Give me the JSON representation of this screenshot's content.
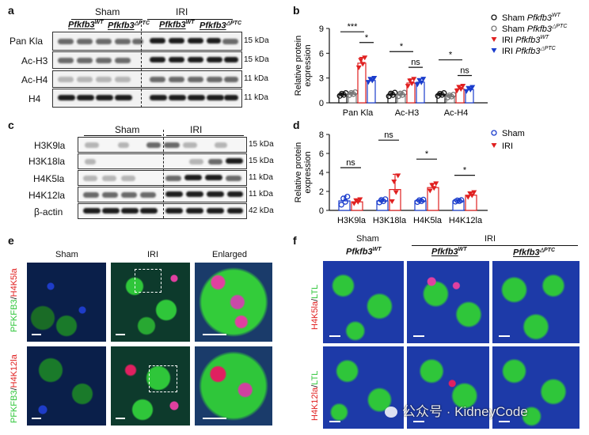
{
  "panels": {
    "a": "a",
    "b": "b",
    "c": "c",
    "d": "d",
    "e": "e",
    "f": "f"
  },
  "blot_a": {
    "groups": [
      "Sham",
      "IRI"
    ],
    "genotypes": [
      "Pfkfb3",
      "WT",
      "Pfkfb3",
      "△PTC",
      "Pfkfb3",
      "WT",
      "Pfkfb3",
      "△PTC"
    ],
    "rows": [
      {
        "label": "Pan Kla",
        "kda": "15 kDa"
      },
      {
        "label": "Ac-H3",
        "kda": "15 kDa"
      },
      {
        "label": "Ac-H4",
        "kda": "11 kDa"
      },
      {
        "label": "H4",
        "kda": "11 kDa"
      }
    ]
  },
  "blot_c": {
    "groups": [
      "Sham",
      "IRI"
    ],
    "rows": [
      {
        "label": "H3K9la",
        "kda": "15 kDa"
      },
      {
        "label": "H3K18la",
        "kda": "15 kDa"
      },
      {
        "label": "H4K5la",
        "kda": "11 kDa"
      },
      {
        "label": "H4K12la",
        "kda": "11 kDa"
      },
      {
        "label": "β-actin",
        "kda": "42 kDa"
      }
    ]
  },
  "chart_data": [
    {
      "panel": "b",
      "type": "bar",
      "ylabel": "Relative protein expression",
      "ylim": [
        0,
        9
      ],
      "yticks": [
        0,
        3,
        6,
        9
      ],
      "categories": [
        "Pan Kla",
        "Ac-H3",
        "Ac-H4"
      ],
      "legend": [
        {
          "prefix": "Sham",
          "gene": "Pfkfb3",
          "sup": "WT",
          "color": "#111111",
          "marker": "circle"
        },
        {
          "prefix": "Sham",
          "gene": "Pfkfb3",
          "sup": "△PTC",
          "color": "#777777",
          "marker": "circle"
        },
        {
          "prefix": "IRI",
          "gene": "Pfkfb3",
          "sup": "WT",
          "color": "#e02020",
          "marker": "triangle-down"
        },
        {
          "prefix": "IRI",
          "gene": "Pfkfb3",
          "sup": "△PTC",
          "color": "#1a3ccc",
          "marker": "triangle-down"
        }
      ],
      "series": [
        {
          "values": [
            1.0,
            1.0,
            1.0
          ],
          "err": [
            0.2,
            0.25,
            0.2
          ]
        },
        {
          "values": [
            1.1,
            1.0,
            0.8
          ],
          "err": [
            0.2,
            0.25,
            0.2
          ]
        },
        {
          "values": [
            4.8,
            2.4,
            1.7
          ],
          "err": [
            0.7,
            0.5,
            0.35
          ]
        },
        {
          "values": [
            2.7,
            2.5,
            1.6
          ],
          "err": [
            0.3,
            0.4,
            0.3
          ]
        }
      ],
      "annotations": [
        {
          "text": "***",
          "group": 0,
          "from": 0,
          "to": 2,
          "y": 8.6
        },
        {
          "text": "*",
          "group": 0,
          "from": 2,
          "to": 3,
          "y": 7.3
        },
        {
          "text": "*",
          "group": 1,
          "from": 0,
          "to": 2,
          "y": 6.2
        },
        {
          "text": "ns",
          "group": 1,
          "from": 2,
          "to": 3,
          "y": 4.3
        },
        {
          "text": "*",
          "group": 2,
          "from": 0,
          "to": 2,
          "y": 5.2
        },
        {
          "text": "ns",
          "group": 2,
          "from": 2,
          "to": 3,
          "y": 3.3
        }
      ]
    },
    {
      "panel": "d",
      "type": "bar",
      "ylabel": "Relative protein expression",
      "ylim": [
        0,
        8
      ],
      "yticks": [
        0,
        2,
        4,
        6,
        8
      ],
      "categories": [
        "H3K9la",
        "H3K18la",
        "H4K5la",
        "H4K12la"
      ],
      "legend": [
        {
          "name": "Sham",
          "color": "#1a3ccc",
          "marker": "circle"
        },
        {
          "name": "IRI",
          "color": "#e02020",
          "marker": "triangle-down"
        }
      ],
      "series": [
        {
          "name": "Sham",
          "values": [
            1.0,
            1.0,
            1.0,
            1.0
          ],
          "err": [
            0.5,
            0.2,
            0.15,
            0.1
          ]
        },
        {
          "name": "IRI",
          "values": [
            0.9,
            2.2,
            2.4,
            1.6
          ],
          "err": [
            0.25,
            1.6,
            0.45,
            0.3
          ]
        }
      ],
      "annotations": [
        {
          "text": "ns",
          "group": 0,
          "y": 4.5
        },
        {
          "text": "ns",
          "group": 1,
          "y": 7.4
        },
        {
          "text": "*",
          "group": 2,
          "y": 5.4
        },
        {
          "text": "*",
          "group": 3,
          "y": 3.7
        }
      ]
    }
  ],
  "panel_e": {
    "columns": [
      "Sham",
      "IRI",
      "Enlarged"
    ],
    "row_labels": [
      {
        "green": "PFKFB3",
        "sep": "/",
        "red": "H4K5la"
      },
      {
        "green": "PFKFB3",
        "sep": "/",
        "red": "H4K12la"
      }
    ]
  },
  "panel_f": {
    "groups": [
      "Sham",
      "IRI"
    ],
    "genotypes": [
      {
        "gene": "Pfkfb3",
        "sup": "WT"
      },
      {
        "gene": "Pfkfb3",
        "sup": "WT"
      },
      {
        "gene": "Pfkfb3",
        "sup": "△PTC"
      }
    ],
    "row_labels": [
      {
        "red": "H4K5la",
        "sep": "/",
        "green": "LTL"
      },
      {
        "red": "H4K12la",
        "sep": "/",
        "green": "LTL"
      }
    ]
  },
  "watermark": {
    "text": "公众号 · KidneyCode",
    "icon": "wechat-icon"
  },
  "colors": {
    "black": "#111111",
    "grey": "#777777",
    "red": "#e02020",
    "blue": "#1a3ccc",
    "green": "#2fc63a",
    "magenta": "#e040a0",
    "dapi": "#1e3cc8"
  }
}
